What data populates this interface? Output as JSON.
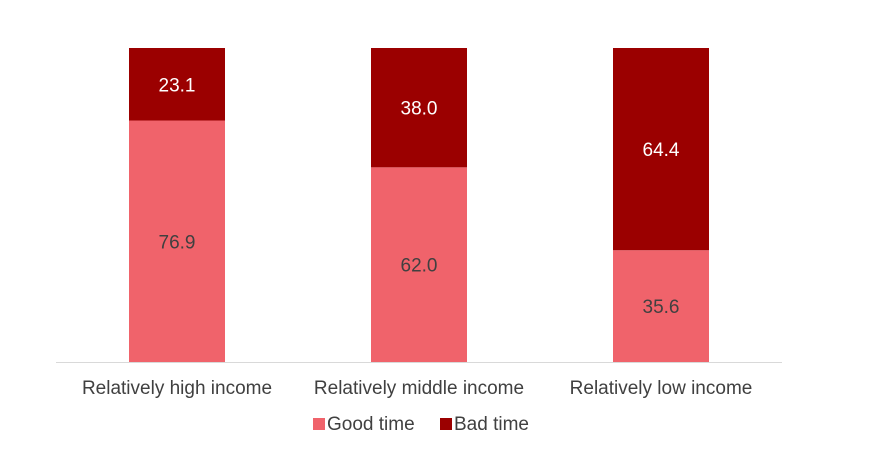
{
  "chart_data": {
    "type": "bar",
    "stacked": true,
    "percent_stacked": true,
    "title": "",
    "xlabel": "",
    "ylabel": "",
    "ylim": [
      0,
      100
    ],
    "grid": false,
    "legend_position": "bottom",
    "categories": [
      "Relatively high income",
      "Relatively middle income",
      "Relatively low income"
    ],
    "series": [
      {
        "name": "Good time",
        "values": [
          76.9,
          62.0,
          35.6
        ],
        "labels": [
          "76.9",
          "62.0",
          "35.6"
        ],
        "color": "#f0636b",
        "label_color": "#404040"
      },
      {
        "name": "Bad time",
        "values": [
          23.1,
          38.0,
          64.4
        ],
        "labels": [
          "23.1",
          "38.0",
          "64.4"
        ],
        "color": "#9b0000",
        "label_color": "#ffffff"
      }
    ]
  }
}
